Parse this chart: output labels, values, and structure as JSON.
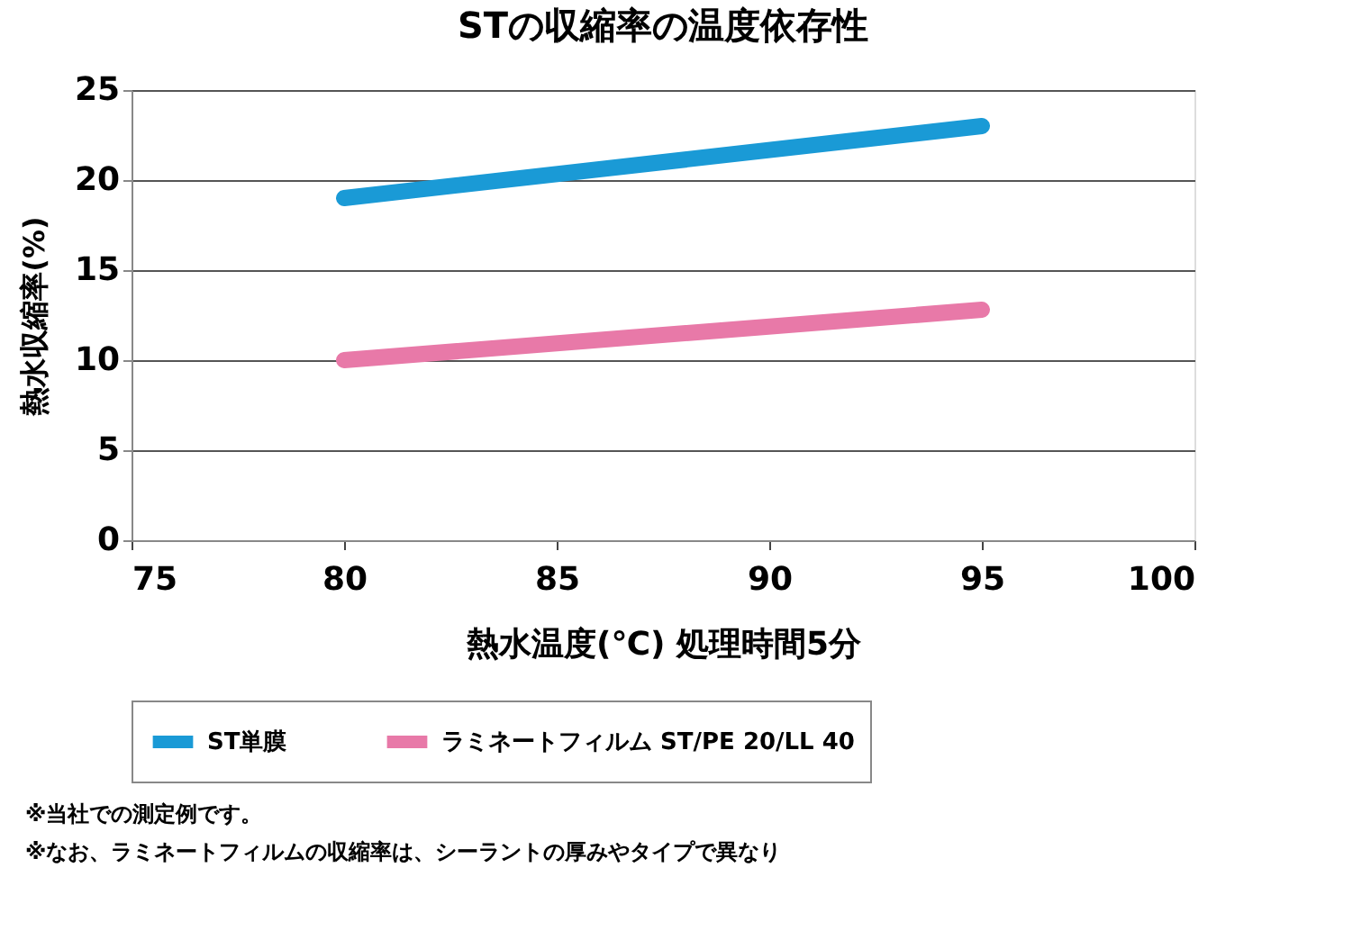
{
  "chart_data": {
    "type": "line",
    "title": "STの収縮率の温度依存性",
    "xlabel": "熱水温度(℃) 処理時間5分",
    "ylabel": "熱水収縮率(%)",
    "x": [
      80,
      95
    ],
    "series": [
      {
        "name": "ST単膜",
        "color": "#1a9ad6",
        "values": [
          19,
          23
        ]
      },
      {
        "name": "ラミネートフィルム ST/PE 20/LL 40",
        "color": "#e879a8",
        "values": [
          10,
          12.8
        ]
      }
    ],
    "xlim": [
      75,
      100
    ],
    "xticks": [
      75,
      80,
      85,
      90,
      95,
      100
    ],
    "ylim": [
      0,
      25
    ],
    "yticks": [
      0,
      5,
      10,
      15,
      20,
      25
    ],
    "grid": "y",
    "legend": "bottom",
    "line_style": "solid",
    "marker": "none",
    "annotations": [
      "※当社での測定例です。",
      "※なお、ラミネートフィルムの収縮率は、シーラントの厚みやタイプで異なり"
    ]
  }
}
